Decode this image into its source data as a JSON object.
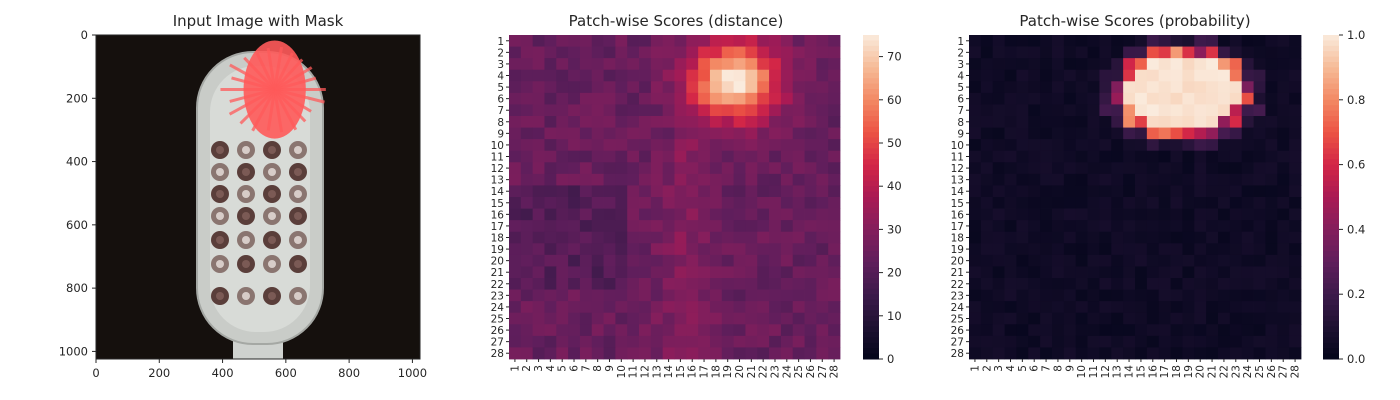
{
  "chart_data": [
    {
      "type": "image",
      "title": "Input Image with Mask",
      "xlim": [
        0,
        1024
      ],
      "ylim": [
        1024,
        0
      ],
      "x_ticks": [
        0,
        200,
        400,
        600,
        800,
        1000
      ],
      "y_ticks": [
        0,
        200,
        400,
        600,
        800,
        1000
      ],
      "image_description": "toothbrush head on black background with a red mask overlay on the top region",
      "mask_color": "#ff5a5a",
      "mask_region": {
        "x": [
          460,
          720
        ],
        "y": [
          30,
          340
        ]
      }
    },
    {
      "type": "heatmap",
      "title": "Patch-wise Scores (distance)",
      "rows": 28,
      "cols": 28,
      "colormap": "rocket",
      "colorbar": {
        "min": 0,
        "max": 75,
        "ticks": [
          0,
          10,
          20,
          30,
          40,
          50,
          60,
          70
        ]
      },
      "x_ticks": [
        "1",
        "2",
        "3",
        "4",
        "5",
        "6",
        "7",
        "8",
        "9",
        "10",
        "11",
        "12",
        "13",
        "14",
        "15",
        "16",
        "17",
        "18",
        "19",
        "20",
        "21",
        "22",
        "23",
        "24",
        "25",
        "26",
        "27",
        "28"
      ],
      "y_ticks": [
        "1",
        "2",
        "3",
        "4",
        "5",
        "6",
        "7",
        "8",
        "9",
        "10",
        "11",
        "12",
        "13",
        "14",
        "15",
        "16",
        "17",
        "18",
        "19",
        "20",
        "21",
        "22",
        "23",
        "24",
        "25",
        "26",
        "27",
        "28"
      ],
      "hotspot": {
        "center_row": 4.5,
        "center_col": 19.5,
        "peak": 75
      },
      "background_value": 24
    },
    {
      "type": "heatmap",
      "title": "Patch-wise Scores (probability)",
      "rows": 28,
      "cols": 28,
      "colormap": "rocket",
      "colorbar": {
        "min": 0.0,
        "max": 1.0,
        "ticks": [
          "0.0",
          "0.2",
          "0.4",
          "0.6",
          "0.8",
          "1.0"
        ]
      },
      "x_ticks": [
        "1",
        "2",
        "3",
        "4",
        "5",
        "6",
        "7",
        "8",
        "9",
        "10",
        "11",
        "12",
        "13",
        "14",
        "15",
        "16",
        "17",
        "18",
        "19",
        "20",
        "21",
        "22",
        "23",
        "24",
        "25",
        "26",
        "27",
        "28"
      ],
      "y_ticks": [
        "1",
        "2",
        "3",
        "4",
        "5",
        "6",
        "7",
        "8",
        "9",
        "10",
        "11",
        "12",
        "13",
        "14",
        "15",
        "16",
        "17",
        "18",
        "19",
        "20",
        "21",
        "22",
        "23",
        "24",
        "25",
        "26",
        "27",
        "28"
      ],
      "hotspot": {
        "center_row": 5.5,
        "center_col": 18.5,
        "peak": 1.0
      },
      "background_value": 0.02
    }
  ]
}
